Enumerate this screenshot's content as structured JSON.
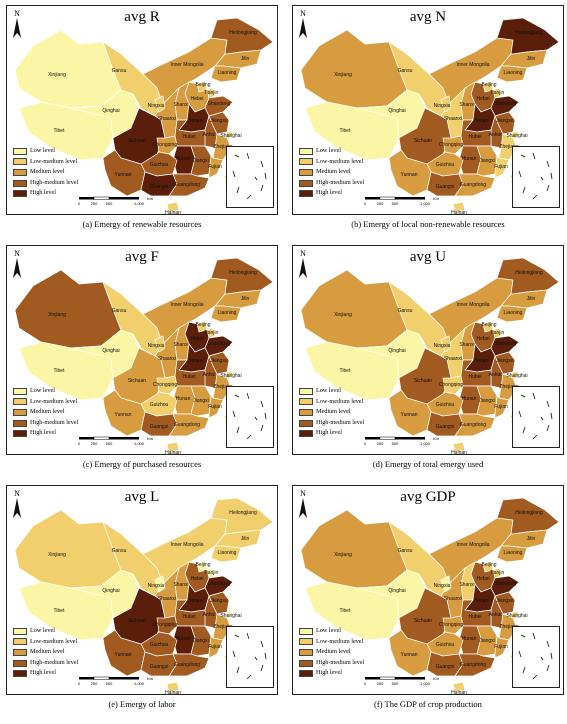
{
  "legend_levels": [
    {
      "label": "Low level",
      "color": "#fbf6a6"
    },
    {
      "label": "Low-medium level",
      "color": "#f1cf6c"
    },
    {
      "label": "Medium level",
      "color": "#d79c3f"
    },
    {
      "label": "High-medium level",
      "color": "#a15a20"
    },
    {
      "label": "High level",
      "color": "#5a1e0a"
    }
  ],
  "north_label": "N",
  "scale_labels": [
    "0",
    "250",
    "500",
    "1,000"
  ],
  "scale_unit": "Km",
  "province_labels": [
    "Xinjiang",
    "Tibet",
    "Qinghai",
    "Gansu",
    "Inner Mongolia",
    "Heilongjiang",
    "Jilin",
    "Liaoning",
    "Beijing",
    "Tianjin",
    "Hebei",
    "Shanxi",
    "Shaanxi",
    "Ningxia",
    "Shandong",
    "Henan",
    "Jiangsu",
    "Shanghai",
    "Anhui",
    "Hubei",
    "Sichuan",
    "Chongqing",
    "Hunan",
    "Jiangxi",
    "Zhejiang",
    "Fujian",
    "Guizhou",
    "Yunnan",
    "Guangxi",
    "Guangdong",
    "Taiwan",
    "Hainan"
  ],
  "panels": [
    {
      "title": "avg R",
      "caption": "(a) Emergy of renewable resources",
      "levels": {
        "Xinjiang": 1,
        "Tibet": 1,
        "Qinghai": 1,
        "Gansu": 2,
        "Inner Mongolia": 3,
        "Heilongjiang": 4,
        "Jilin": 3,
        "Liaoning": 3,
        "Beijing": 2,
        "Tianjin": 2,
        "Hebei": 3,
        "Shanxi": 3,
        "Shaanxi": 3,
        "Ningxia": 2,
        "Shandong": 4,
        "Henan": 5,
        "Jiangsu": 4,
        "Shanghai": 2,
        "Anhui": 4,
        "Hubei": 4,
        "Sichuan": 5,
        "Chongqing": 3,
        "Hunan": 5,
        "Jiangxi": 4,
        "Zhejiang": 3,
        "Fujian": 3,
        "Guizhou": 4,
        "Yunnan": 4,
        "Guangxi": 5,
        "Guangdong": 4,
        "Taiwan": 1,
        "Hainan": 2
      }
    },
    {
      "title": "avg N",
      "caption": "(b) Emergy of local non-renewable resources",
      "levels": {
        "Xinjiang": 3,
        "Tibet": 1,
        "Qinghai": 1,
        "Gansu": 2,
        "Inner Mongolia": 3,
        "Heilongjiang": 5,
        "Jilin": 3,
        "Liaoning": 3,
        "Beijing": 2,
        "Tianjin": 2,
        "Hebei": 4,
        "Shanxi": 3,
        "Shaanxi": 2,
        "Ningxia": 2,
        "Shandong": 5,
        "Henan": 5,
        "Jiangsu": 4,
        "Shanghai": 2,
        "Anhui": 4,
        "Hubei": 4,
        "Sichuan": 4,
        "Chongqing": 3,
        "Hunan": 4,
        "Jiangxi": 3,
        "Zhejiang": 2,
        "Fujian": 2,
        "Guizhou": 3,
        "Yunnan": 3,
        "Guangxi": 4,
        "Guangdong": 3,
        "Taiwan": 1,
        "Hainan": 2
      }
    },
    {
      "title": "avg F",
      "caption": "(c) Emergy of purchased resources",
      "levels": {
        "Xinjiang": 4,
        "Tibet": 1,
        "Qinghai": 1,
        "Gansu": 2,
        "Inner Mongolia": 3,
        "Heilongjiang": 4,
        "Jilin": 3,
        "Liaoning": 3,
        "Beijing": 2,
        "Tianjin": 2,
        "Hebei": 5,
        "Shanxi": 3,
        "Shaanxi": 3,
        "Ningxia": 2,
        "Shandong": 5,
        "Henan": 5,
        "Jiangsu": 4,
        "Shanghai": 2,
        "Anhui": 4,
        "Hubei": 4,
        "Sichuan": 3,
        "Chongqing": 2,
        "Hunan": 3,
        "Jiangxi": 3,
        "Zhejiang": 3,
        "Fujian": 3,
        "Guizhou": 2,
        "Yunnan": 3,
        "Guangxi": 4,
        "Guangdong": 3,
        "Taiwan": 1,
        "Hainan": 2
      }
    },
    {
      "title": "avg U",
      "caption": "(d) Emergy of total emergy used",
      "levels": {
        "Xinjiang": 3,
        "Tibet": 1,
        "Qinghai": 1,
        "Gansu": 2,
        "Inner Mongolia": 3,
        "Heilongjiang": 4,
        "Jilin": 3,
        "Liaoning": 3,
        "Beijing": 2,
        "Tianjin": 2,
        "Hebei": 4,
        "Shanxi": 3,
        "Shaanxi": 2,
        "Ningxia": 2,
        "Shandong": 5,
        "Henan": 5,
        "Jiangsu": 4,
        "Shanghai": 2,
        "Anhui": 4,
        "Hubei": 4,
        "Sichuan": 4,
        "Chongqing": 2,
        "Hunan": 4,
        "Jiangxi": 3,
        "Zhejiang": 3,
        "Fujian": 3,
        "Guizhou": 3,
        "Yunnan": 3,
        "Guangxi": 4,
        "Guangdong": 3,
        "Taiwan": 1,
        "Hainan": 2
      }
    },
    {
      "title": "avg L",
      "caption": "(e) Emergy of labor",
      "levels": {
        "Xinjiang": 2,
        "Tibet": 1,
        "Qinghai": 1,
        "Gansu": 2,
        "Inner Mongolia": 2,
        "Heilongjiang": 2,
        "Jilin": 2,
        "Liaoning": 2,
        "Beijing": 1,
        "Tianjin": 1,
        "Hebei": 4,
        "Shanxi": 3,
        "Shaanxi": 3,
        "Ningxia": 1,
        "Shandong": 5,
        "Henan": 5,
        "Jiangsu": 4,
        "Shanghai": 1,
        "Anhui": 4,
        "Hubei": 4,
        "Sichuan": 5,
        "Chongqing": 4,
        "Hunan": 5,
        "Jiangxi": 4,
        "Zhejiang": 3,
        "Fujian": 3,
        "Guizhou": 4,
        "Yunnan": 4,
        "Guangxi": 4,
        "Guangdong": 4,
        "Taiwan": 1,
        "Hainan": 2
      }
    },
    {
      "title": "avg GDP",
      "caption": "(f) The GDP of crop production",
      "levels": {
        "Xinjiang": 3,
        "Tibet": 1,
        "Qinghai": 1,
        "Gansu": 2,
        "Inner Mongolia": 3,
        "Heilongjiang": 4,
        "Jilin": 3,
        "Liaoning": 3,
        "Beijing": 2,
        "Tianjin": 2,
        "Hebei": 4,
        "Shanxi": 2,
        "Shaanxi": 3,
        "Ningxia": 1,
        "Shandong": 5,
        "Henan": 5,
        "Jiangsu": 4,
        "Shanghai": 2,
        "Anhui": 4,
        "Hubei": 4,
        "Sichuan": 4,
        "Chongqing": 3,
        "Hunan": 4,
        "Jiangxi": 3,
        "Zhejiang": 3,
        "Fujian": 3,
        "Guizhou": 3,
        "Yunnan": 3,
        "Guangxi": 4,
        "Guangdong": 4,
        "Taiwan": 1,
        "Hainan": 2
      }
    }
  ]
}
